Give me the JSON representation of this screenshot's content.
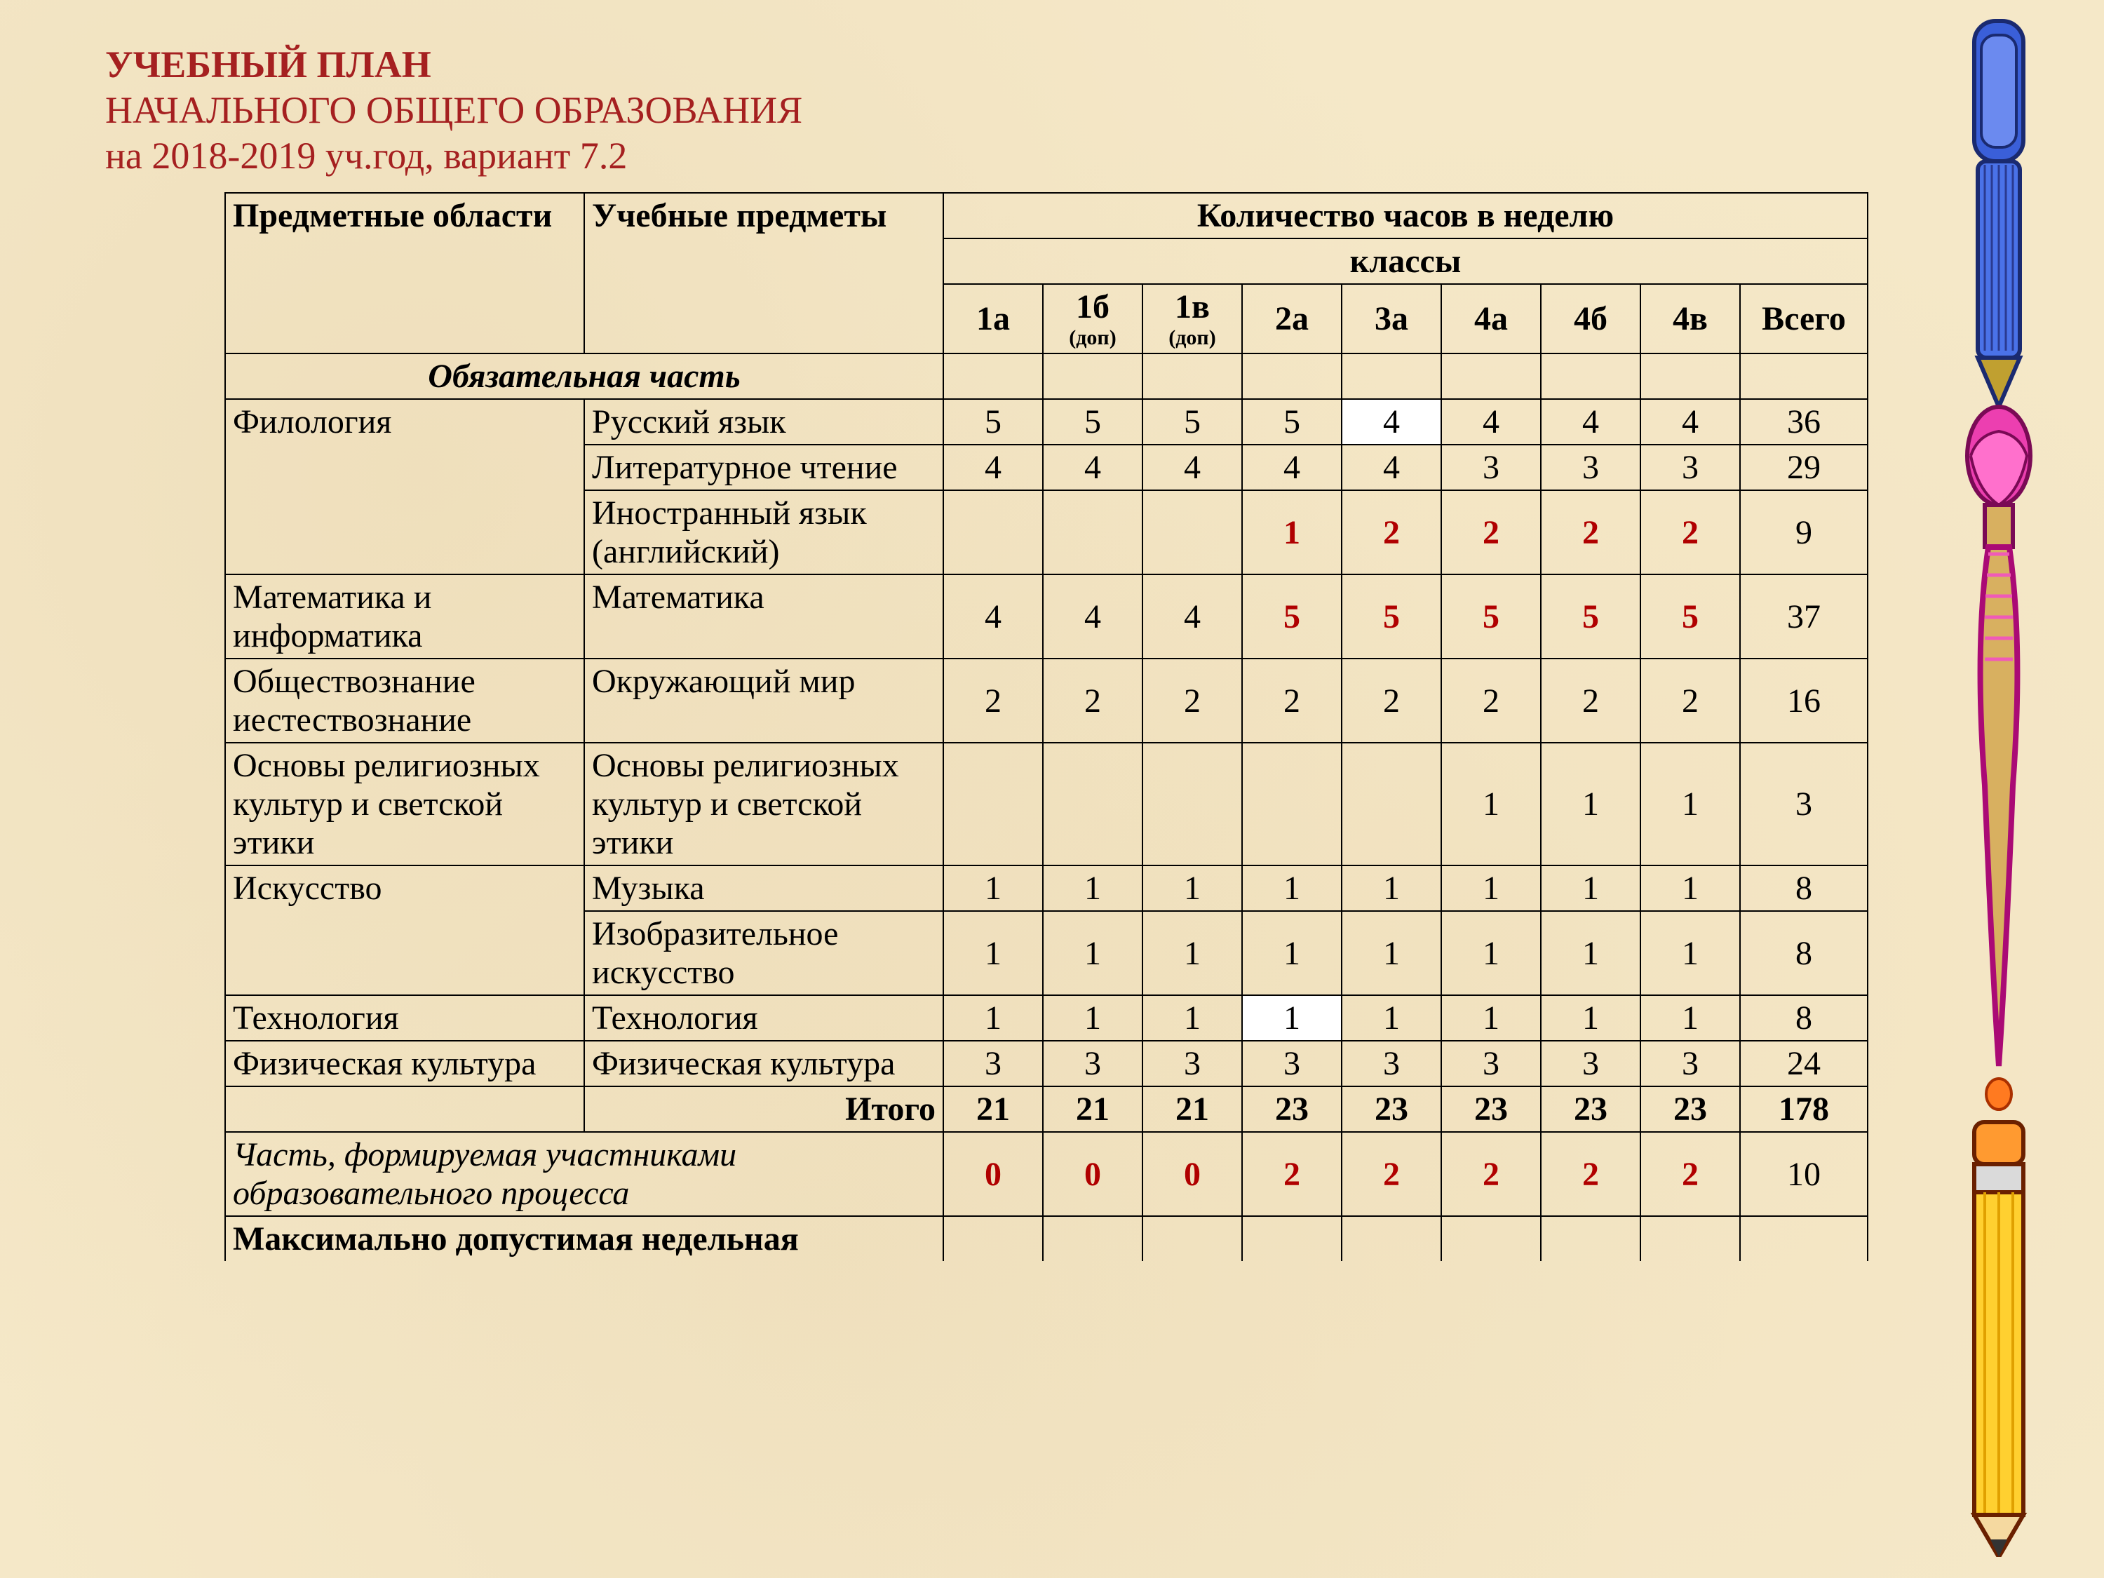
{
  "header": {
    "line1": "УЧЕБНЫЙ ПЛАН",
    "line2": "НАЧАЛЬНОГО ОБЩЕГО ОБРАЗОВАНИЯ",
    "line3": "на 2018-2019 уч.год, вариант 7.2"
  },
  "table": {
    "head": {
      "areas": "Предметные области",
      "subjects": "Учебные предметы",
      "hours_per_week": "Количество часов в неделю",
      "classes": "классы",
      "cols": [
        "1а",
        "1б",
        "1в",
        "2а",
        "3а",
        "4а",
        "4б",
        "4в",
        "Всего"
      ],
      "col_subs": [
        "",
        "(доп)",
        "(доп)",
        "",
        "",
        "",
        "",
        "",
        ""
      ]
    },
    "mandatory_label": "Обязательная часть",
    "rows": [
      {
        "area": "Филология",
        "area_rowspan": 3,
        "subject": "Русский язык",
        "vals": [
          "5",
          "5",
          "5",
          "5",
          "4",
          "4",
          "4",
          "4",
          "36"
        ],
        "red": [
          false,
          false,
          false,
          false,
          false,
          false,
          false,
          false,
          false
        ],
        "white": [
          false,
          false,
          false,
          false,
          true,
          false,
          false,
          false,
          false
        ]
      },
      {
        "area": "",
        "subject": "Литературное чтение",
        "vals": [
          "4",
          "4",
          "4",
          "4",
          "4",
          "3",
          "3",
          "3",
          "29"
        ],
        "red": [
          false,
          false,
          false,
          false,
          false,
          false,
          false,
          false,
          false
        ],
        "white": [
          false,
          false,
          false,
          false,
          false,
          false,
          false,
          false,
          false
        ]
      },
      {
        "area": "",
        "subject": "Иностранный язык (английский)",
        "vals": [
          "",
          "",
          "",
          "1",
          "2",
          "2",
          "2",
          "2",
          "9"
        ],
        "red": [
          false,
          false,
          false,
          true,
          true,
          true,
          true,
          true,
          false
        ],
        "white": [
          false,
          false,
          false,
          false,
          false,
          false,
          false,
          false,
          false
        ]
      },
      {
        "area": "Математика и информатика",
        "area_rowspan": 1,
        "subject": "Математика",
        "vals": [
          "4",
          "4",
          "4",
          "5",
          "5",
          "5",
          "5",
          "5",
          "37"
        ],
        "red": [
          false,
          false,
          false,
          true,
          true,
          true,
          true,
          true,
          false
        ],
        "white": [
          false,
          false,
          false,
          false,
          false,
          false,
          false,
          false,
          false
        ]
      },
      {
        "area": "Обществознание иестествознание",
        "area_rowspan": 1,
        "subject": "Окружающий мир",
        "vals": [
          "2",
          "2",
          "2",
          "2",
          "2",
          "2",
          "2",
          "2",
          "16"
        ],
        "red": [
          false,
          false,
          false,
          false,
          false,
          false,
          false,
          false,
          false
        ],
        "white": [
          false,
          false,
          false,
          false,
          false,
          false,
          false,
          false,
          false
        ]
      },
      {
        "area": "Основы религиозных культур и светской этики",
        "area_rowspan": 1,
        "subject": "Основы религиозных культур и светской этики",
        "vals": [
          "",
          "",
          "",
          "",
          "",
          "1",
          "1",
          "1",
          "3"
        ],
        "red": [
          false,
          false,
          false,
          false,
          false,
          false,
          false,
          false,
          false
        ],
        "white": [
          false,
          false,
          false,
          false,
          false,
          false,
          false,
          false,
          false
        ]
      },
      {
        "area": "Искусство",
        "area_rowspan": 2,
        "subject": "Музыка",
        "vals": [
          "1",
          "1",
          "1",
          "1",
          "1",
          "1",
          "1",
          "1",
          "8"
        ],
        "red": [
          false,
          false,
          false,
          false,
          false,
          false,
          false,
          false,
          false
        ],
        "white": [
          false,
          false,
          false,
          false,
          false,
          false,
          false,
          false,
          false
        ]
      },
      {
        "area": "",
        "subject": "Изобразительное искусство",
        "vals": [
          "1",
          "1",
          "1",
          "1",
          "1",
          "1",
          "1",
          "1",
          "8"
        ],
        "red": [
          false,
          false,
          false,
          false,
          false,
          false,
          false,
          false,
          false
        ],
        "white": [
          false,
          false,
          false,
          false,
          false,
          false,
          false,
          false,
          false
        ]
      },
      {
        "area": "Технология",
        "area_rowspan": 1,
        "subject": "Технология",
        "vals": [
          "1",
          "1",
          "1",
          "1",
          "1",
          "1",
          "1",
          "1",
          "8"
        ],
        "red": [
          false,
          false,
          false,
          false,
          false,
          false,
          false,
          false,
          false
        ],
        "white": [
          false,
          false,
          false,
          true,
          false,
          false,
          false,
          false,
          false
        ]
      },
      {
        "area": "Физическая культура",
        "area_rowspan": 1,
        "subject": "Физическая культура",
        "vals": [
          "3",
          "3",
          "3",
          "3",
          "3",
          "3",
          "3",
          "3",
          "24"
        ],
        "red": [
          false,
          false,
          false,
          false,
          false,
          false,
          false,
          false,
          false
        ],
        "white": [
          false,
          false,
          false,
          false,
          false,
          false,
          false,
          false,
          false
        ]
      }
    ],
    "itogo": {
      "label": "Итого",
      "vals": [
        "21",
        "21",
        "21",
        "23",
        "23",
        "23",
        "23",
        "23",
        "178"
      ]
    },
    "part2": {
      "label": "Часть, формируемая участниками образовательного процесса",
      "vals": [
        "0",
        "0",
        "0",
        "2",
        "2",
        "2",
        "2",
        "2",
        "10"
      ],
      "red": [
        true,
        true,
        true,
        true,
        true,
        true,
        true,
        true,
        false
      ]
    },
    "max_row": {
      "label": "Максимально допустимая недельная"
    }
  },
  "colors": {
    "title": "#a52020",
    "red_bold": "#b00000",
    "border": "#000000",
    "bg": "#f5e8c8"
  },
  "fonts": {
    "title_size_pt": 40,
    "cell_size_pt": 36,
    "sub_size_pt": 22
  }
}
